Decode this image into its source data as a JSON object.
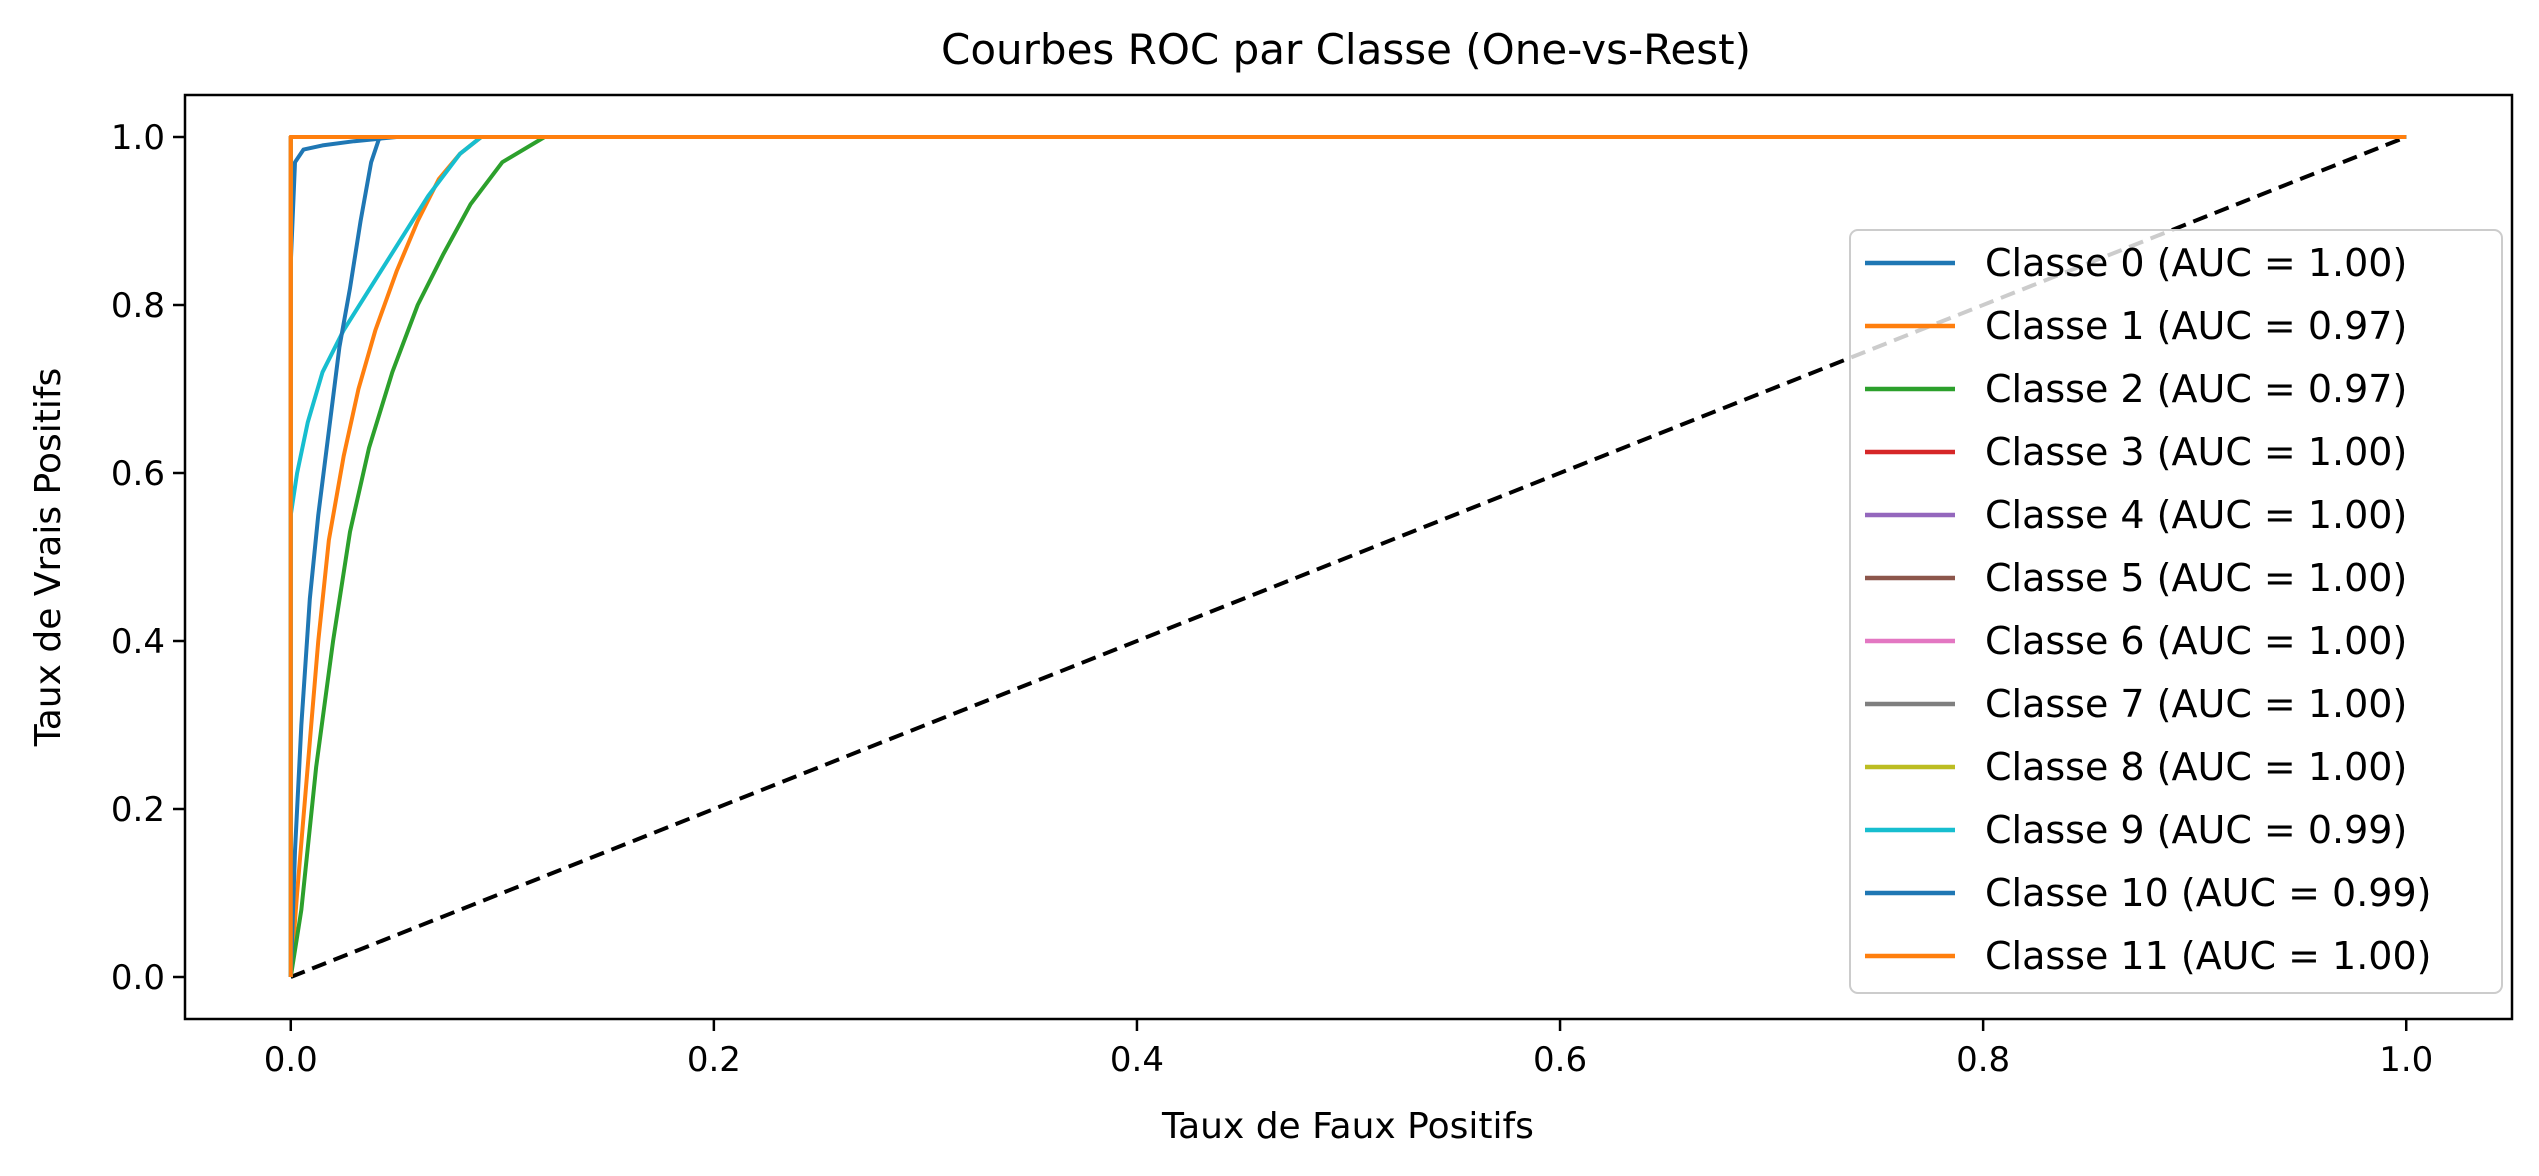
{
  "chart_data": {
    "type": "line",
    "title": "Courbes ROC par Classe (One-vs-Rest)",
    "xlabel": "Taux de Faux Positifs",
    "ylabel": "Taux de Vrais Positifs",
    "xlim": [
      -0.05,
      1.05
    ],
    "ylim": [
      -0.05,
      1.05
    ],
    "xticks": [
      0.0,
      0.2,
      0.4,
      0.6,
      0.8,
      1.0
    ],
    "yticks": [
      0.0,
      0.2,
      0.4,
      0.6,
      0.8,
      1.0
    ],
    "tick_labels": [
      "0.0",
      "0.2",
      "0.4",
      "0.6",
      "0.8",
      "1.0"
    ],
    "grid": false,
    "legend_position": "right",
    "series": [
      {
        "name": "Classe 0 (AUC = 1.00)",
        "color": "#1f77b4",
        "points": [
          [
            0,
            0
          ],
          [
            0,
            0.85
          ],
          [
            0.002,
            0.97
          ],
          [
            0.006,
            0.985
          ],
          [
            0.015,
            0.99
          ],
          [
            0.03,
            0.995
          ],
          [
            0.05,
            1.0
          ],
          [
            1,
            1
          ]
        ]
      },
      {
        "name": "Classe 1 (AUC = 0.97)",
        "color": "#ff7f0e",
        "points": [
          [
            0,
            0
          ],
          [
            0.003,
            0.1
          ],
          [
            0.008,
            0.25
          ],
          [
            0.013,
            0.4
          ],
          [
            0.018,
            0.52
          ],
          [
            0.025,
            0.62
          ],
          [
            0.032,
            0.7
          ],
          [
            0.04,
            0.77
          ],
          [
            0.05,
            0.84
          ],
          [
            0.06,
            0.9
          ],
          [
            0.07,
            0.95
          ],
          [
            0.08,
            0.98
          ],
          [
            0.09,
            1.0
          ],
          [
            1,
            1
          ]
        ]
      },
      {
        "name": "Classe 2 (AUC = 0.97)",
        "color": "#2ca02c",
        "points": [
          [
            0,
            0
          ],
          [
            0.005,
            0.08
          ],
          [
            0.012,
            0.25
          ],
          [
            0.02,
            0.4
          ],
          [
            0.028,
            0.53
          ],
          [
            0.037,
            0.63
          ],
          [
            0.048,
            0.72
          ],
          [
            0.06,
            0.8
          ],
          [
            0.072,
            0.86
          ],
          [
            0.085,
            0.92
          ],
          [
            0.1,
            0.97
          ],
          [
            0.12,
            1.0
          ],
          [
            1,
            1
          ]
        ]
      },
      {
        "name": "Classe 3 (AUC = 1.00)",
        "color": "#d62728",
        "points": [
          [
            0,
            0
          ],
          [
            0,
            1
          ],
          [
            1,
            1
          ]
        ]
      },
      {
        "name": "Classe 4 (AUC = 1.00)",
        "color": "#9467bd",
        "points": [
          [
            0,
            0
          ],
          [
            0,
            1
          ],
          [
            1,
            1
          ]
        ]
      },
      {
        "name": "Classe 5 (AUC = 1.00)",
        "color": "#8c564b",
        "points": [
          [
            0,
            0
          ],
          [
            0,
            1
          ],
          [
            1,
            1
          ]
        ]
      },
      {
        "name": "Classe 6 (AUC = 1.00)",
        "color": "#e377c2",
        "points": [
          [
            0,
            0
          ],
          [
            0,
            1
          ],
          [
            1,
            1
          ]
        ]
      },
      {
        "name": "Classe 7 (AUC = 1.00)",
        "color": "#7f7f7f",
        "points": [
          [
            0,
            0
          ],
          [
            0,
            1
          ],
          [
            1,
            1
          ]
        ]
      },
      {
        "name": "Classe 8 (AUC = 1.00)",
        "color": "#bcbd22",
        "points": [
          [
            0,
            0
          ],
          [
            0,
            1
          ],
          [
            1,
            1
          ]
        ]
      },
      {
        "name": "Classe 9 (AUC = 0.99)",
        "color": "#17becf",
        "points": [
          [
            0,
            0
          ],
          [
            0,
            0.55
          ],
          [
            0.003,
            0.6
          ],
          [
            0.008,
            0.66
          ],
          [
            0.015,
            0.72
          ],
          [
            0.025,
            0.77
          ],
          [
            0.035,
            0.81
          ],
          [
            0.05,
            0.87
          ],
          [
            0.065,
            0.93
          ],
          [
            0.08,
            0.98
          ],
          [
            0.09,
            1.0
          ],
          [
            1,
            1
          ]
        ]
      },
      {
        "name": "Classe 10 (AUC = 0.99)",
        "color": "#1f77b4",
        "points": [
          [
            0,
            0
          ],
          [
            0.002,
            0.15
          ],
          [
            0.005,
            0.3
          ],
          [
            0.009,
            0.45
          ],
          [
            0.013,
            0.55
          ],
          [
            0.018,
            0.65
          ],
          [
            0.023,
            0.75
          ],
          [
            0.028,
            0.82
          ],
          [
            0.033,
            0.9
          ],
          [
            0.038,
            0.97
          ],
          [
            0.042,
            1.0
          ],
          [
            1,
            1
          ]
        ]
      },
      {
        "name": "Classe 11 (AUC = 1.00)",
        "color": "#ff7f0e",
        "points": [
          [
            0,
            0
          ],
          [
            0,
            1
          ],
          [
            1,
            1
          ]
        ]
      }
    ],
    "reference_line": {
      "points": [
        [
          0,
          0
        ],
        [
          1,
          1
        ]
      ],
      "color": "#000000",
      "style": "dashed"
    }
  }
}
